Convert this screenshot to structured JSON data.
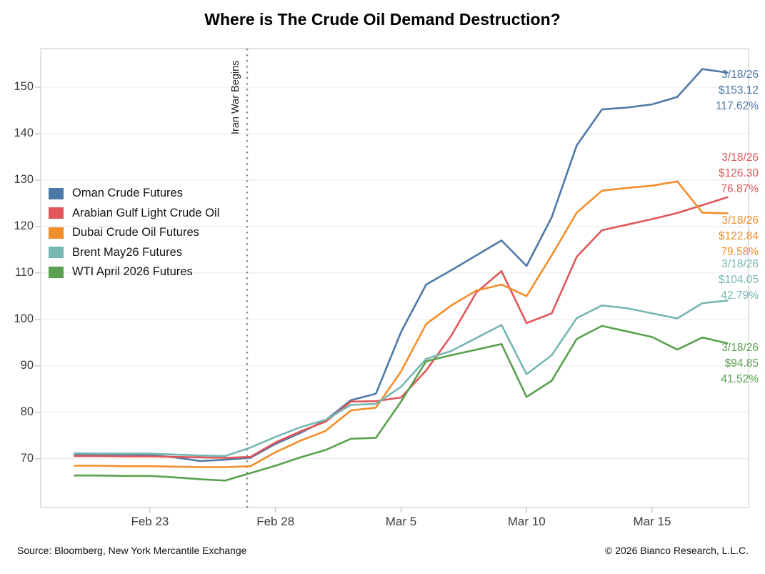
{
  "title": "Where is The Crude Oil Demand Destruction?",
  "footer": {
    "source": "Source: Bloomberg, New York Mercantile Exchange",
    "copyright": "© 2026 Bianco Research, L.L.C."
  },
  "chart_data": {
    "type": "line",
    "title": "Where is The Crude Oil Demand Destruction?",
    "grid": "horizontal",
    "legend_position": "upper-left",
    "x_axis": {
      "unit": "calendar days, Feb 20 2026 - Mar 18 2026",
      "domain_days": [
        -0.35,
        27.84
      ],
      "tick_days": [
        4,
        9,
        14,
        19,
        24
      ],
      "tick_labels": [
        "Feb 23",
        "Feb 28",
        "Mar 5",
        "Mar 10",
        "Mar 15"
      ]
    },
    "y_axis": {
      "ylim": [
        59.5,
        158.3
      ],
      "ticks": [
        70,
        80,
        90,
        100,
        110,
        120,
        130,
        140,
        150
      ]
    },
    "event_line": {
      "day": 7.87,
      "label": "Iran War Begins",
      "color": "#8f8f8f"
    },
    "dates": [
      "2/20",
      "2/21",
      "2/22",
      "2/23",
      "2/24",
      "2/25",
      "2/26",
      "2/27",
      "2/28",
      "3/1",
      "3/2",
      "3/3",
      "3/4",
      "3/5",
      "3/6",
      "3/7",
      "3/8",
      "3/9",
      "3/10",
      "3/11",
      "3/12",
      "3/13",
      "3/14",
      "3/15",
      "3/16",
      "3/17",
      "3/18"
    ],
    "x_days": [
      1,
      2,
      3,
      4,
      5,
      6,
      7,
      8,
      9,
      10,
      11,
      12,
      13,
      14,
      15,
      16,
      17,
      18,
      19,
      20,
      21,
      22,
      23,
      24,
      25,
      26,
      27
    ],
    "series": [
      {
        "name": "Oman Crude Futures",
        "color": "#4e79a7",
        "values": [
          71.0,
          70.9,
          70.9,
          70.8,
          70.3,
          69.5,
          69.8,
          70.2,
          73.2,
          75.6,
          78.3,
          82.6,
          84.0,
          97.3,
          107.5,
          110.6,
          113.8,
          117.0,
          111.5,
          122.0,
          137.5,
          145.2,
          145.6,
          146.3,
          147.9,
          153.9,
          153.12
        ],
        "annotation": {
          "date": "3/18/26",
          "price": "$153.12",
          "pct": "117.62%"
        }
      },
      {
        "name": "Arabian Gulf Light Crude Oil",
        "color": "#e15759",
        "values": [
          70.6,
          70.6,
          70.5,
          70.5,
          70.4,
          70.3,
          70.2,
          70.4,
          73.5,
          75.9,
          78.0,
          82.3,
          82.4,
          83.2,
          89.0,
          96.5,
          105.8,
          110.4,
          99.2,
          101.3,
          113.5,
          119.2,
          120.4,
          121.6,
          122.9,
          124.6,
          126.3
        ],
        "annotation": {
          "date": "3/18/26",
          "price": "$126.30",
          "pct": "76.87%"
        }
      },
      {
        "name": "Dubai Crude Oil Futures",
        "color": "#f28e2b",
        "values": [
          68.5,
          68.5,
          68.4,
          68.4,
          68.3,
          68.2,
          68.2,
          68.4,
          71.4,
          73.9,
          76.0,
          80.4,
          81.0,
          88.8,
          99.0,
          103.0,
          106.2,
          107.5,
          105.0,
          113.8,
          123.0,
          127.7,
          128.3,
          128.8,
          129.7,
          123.0,
          122.84
        ],
        "annotation": {
          "date": "3/18/26",
          "price": "$122.84",
          "pct": "79.58%"
        }
      },
      {
        "name": "Brent May26 Futures",
        "color": "#76b7b2",
        "values": [
          71.2,
          71.1,
          71.1,
          71.1,
          70.9,
          70.7,
          70.6,
          72.4,
          74.7,
          76.8,
          78.4,
          81.6,
          81.8,
          85.5,
          91.5,
          93.2,
          96.0,
          98.8,
          88.2,
          92.3,
          100.3,
          103.0,
          102.4,
          101.3,
          100.2,
          103.5,
          104.05
        ],
        "annotation": {
          "date": "3/18/26",
          "price": "$104.05",
          "pct": "42.79%"
        }
      },
      {
        "name": "WTI April 2026 Futures",
        "color": "#59a14f",
        "values": [
          66.4,
          66.4,
          66.3,
          66.3,
          66.0,
          65.6,
          65.3,
          66.9,
          68.5,
          70.3,
          71.9,
          74.3,
          74.5,
          82.3,
          91.0,
          92.3,
          93.5,
          94.7,
          83.3,
          86.8,
          95.8,
          98.6,
          97.4,
          96.2,
          93.5,
          96.1,
          94.85
        ],
        "annotation": {
          "date": "3/18/26",
          "price": "$94.85",
          "pct": "41.52%"
        }
      }
    ],
    "style_colors": {
      "gridline": "#ececec",
      "plot_border": "#cfcfcf",
      "tick": "#bbbbbb",
      "axis_text": "#3c3c3c"
    }
  }
}
